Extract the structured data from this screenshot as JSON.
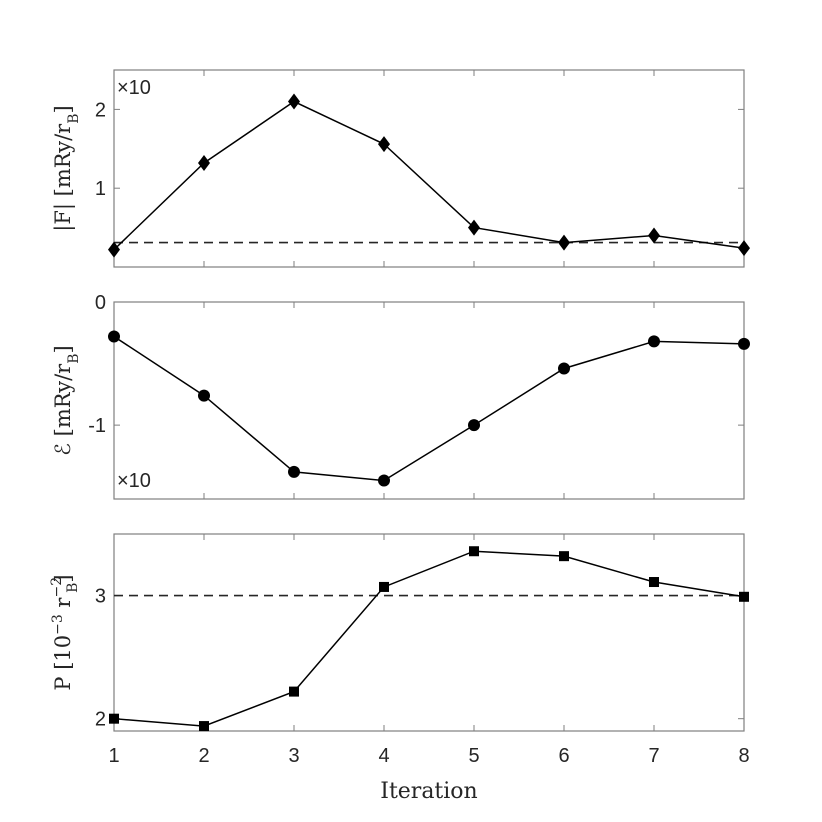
{
  "chart_data": [
    {
      "type": "line",
      "panel": "top",
      "ylabel": "|F| [mRy/rB]",
      "ylabel_parts": {
        "main": "|F| [mRy/r",
        "sub": "B",
        "close": "]"
      },
      "scale_annotation": "×10",
      "scale_position": "top-left",
      "x": [
        1,
        2,
        3,
        4,
        5,
        6,
        7,
        8
      ],
      "values": [
        0.22,
        1.32,
        2.1,
        1.56,
        0.5,
        0.31,
        0.4,
        0.24
      ],
      "marker": "diamond",
      "reference_line": {
        "y": 0.31,
        "style": "dashed"
      },
      "ylim": [
        0,
        2.5
      ],
      "yticks": [
        1,
        2
      ],
      "ytick_labels": [
        "1",
        "2"
      ],
      "grid": false
    },
    {
      "type": "line",
      "panel": "middle",
      "ylabel": "ℰ [mRy/rB]",
      "ylabel_parts": {
        "main": "ℰ [mRy/r",
        "sub": "B",
        "close": "]"
      },
      "scale_annotation": "×10",
      "scale_position": "bottom-left",
      "x": [
        1,
        2,
        3,
        4,
        5,
        6,
        7,
        8
      ],
      "values": [
        -0.28,
        -0.76,
        -1.38,
        -1.45,
        -1.0,
        -0.54,
        -0.32,
        -0.34
      ],
      "marker": "circle",
      "ylim": [
        -1.6,
        0
      ],
      "yticks": [
        -1,
        0
      ],
      "ytick_labels": [
        "-1",
        "0"
      ],
      "grid": false
    },
    {
      "type": "line",
      "panel": "bottom",
      "ylabel": "P [10^-3 rB^-2]",
      "ylabel_parts": {
        "main": "P [10",
        "exp": "−3",
        "unit": " r",
        "sub": "B",
        "unit_exp": "−2",
        "close": "]"
      },
      "x": [
        1,
        2,
        3,
        4,
        5,
        6,
        7,
        8
      ],
      "values": [
        2.0,
        1.94,
        2.22,
        3.07,
        3.36,
        3.32,
        3.11,
        2.99
      ],
      "marker": "square",
      "reference_line": {
        "y": 3.0,
        "style": "dashed"
      },
      "ylim": [
        1.9,
        3.5
      ],
      "yticks": [
        2,
        3
      ],
      "ytick_labels": [
        "2",
        "3"
      ],
      "grid": false
    }
  ],
  "xaxis": {
    "label": "Iteration",
    "ticks": [
      1,
      2,
      3,
      4,
      5,
      6,
      7,
      8
    ],
    "tick_labels": [
      "1",
      "2",
      "3",
      "4",
      "5",
      "6",
      "7",
      "8"
    ],
    "xlim": [
      1,
      8
    ]
  },
  "colors": {
    "line": "#000000",
    "axis": "#262626",
    "dashed": "#262626",
    "background": "#ffffff"
  }
}
